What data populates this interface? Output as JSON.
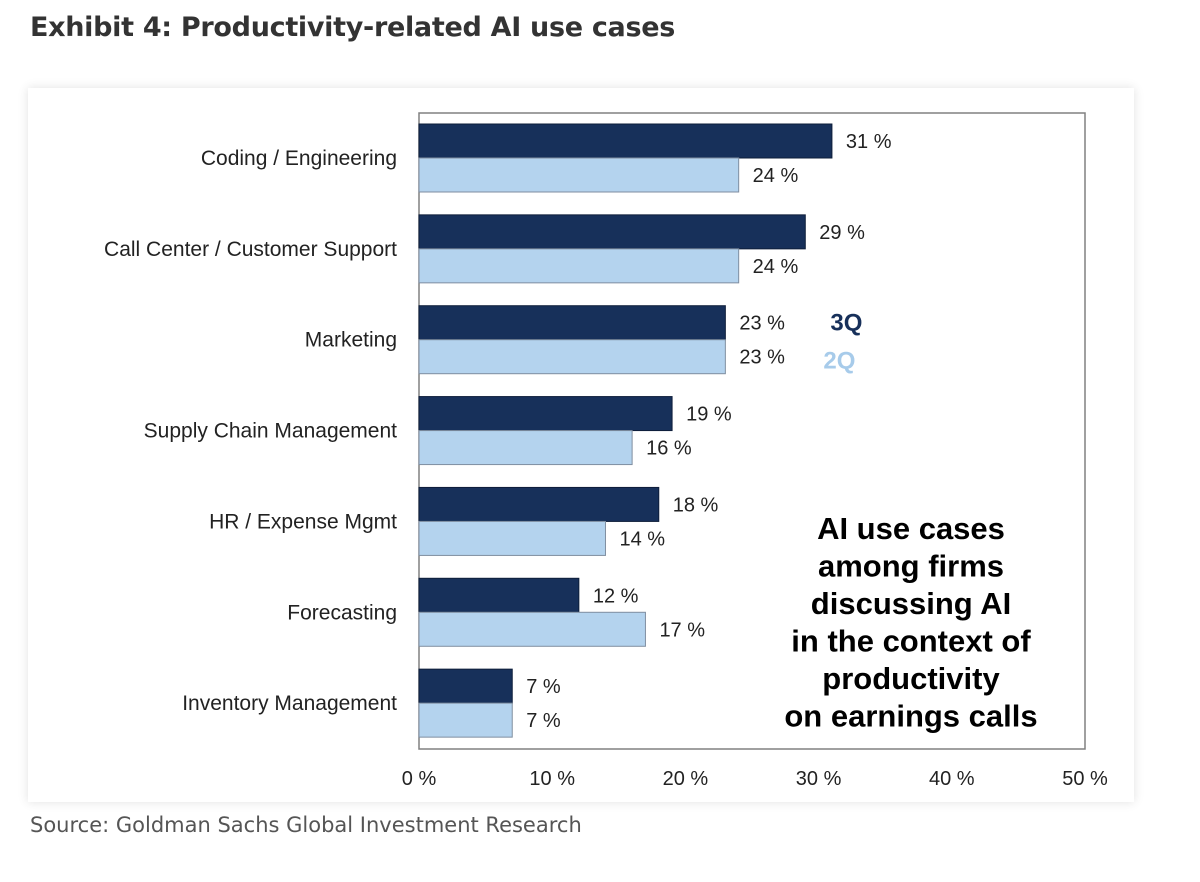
{
  "title": "Exhibit 4: Productivity-related AI use cases",
  "source": "Source: Goldman Sachs Global Investment Research",
  "colors": {
    "series_3q": "#17305a",
    "series_2q": "#b4d3ee",
    "legend_3q": "#17305a",
    "legend_2q": "#a7cbea"
  },
  "chart_data": {
    "type": "bar",
    "orientation": "horizontal",
    "categories": [
      "Coding / Engineering",
      "Call Center / Customer Support",
      "Marketing",
      "Supply Chain Management",
      "HR / Expense Mgmt",
      "Forecasting",
      "Inventory Management"
    ],
    "series": [
      {
        "name": "3Q",
        "values": [
          31,
          29,
          23,
          19,
          18,
          12,
          7
        ]
      },
      {
        "name": "2Q",
        "values": [
          24,
          24,
          23,
          16,
          14,
          17,
          7
        ]
      }
    ],
    "value_labels": {
      "3Q": [
        "31 %",
        "29 %",
        "23 %",
        "19 %",
        "18 %",
        "12 %",
        "7 %"
      ],
      "2Q": [
        "24 %",
        "24 %",
        "23 %",
        "16 %",
        "14 %",
        "17 %",
        "7 %"
      ]
    },
    "xlim": [
      0,
      50
    ],
    "xticks": [
      0,
      10,
      20,
      30,
      40,
      50
    ],
    "xtick_labels": [
      "0 %",
      "10 %",
      "20 %",
      "30 %",
      "40 %",
      "50 %"
    ],
    "legend": {
      "placement": "inline next to Marketing bars",
      "entries": [
        "3Q",
        "2Q"
      ]
    },
    "annotation": [
      "AI use cases",
      "among firms",
      "discussing AI",
      "in the context of",
      "productivity",
      "on earnings calls"
    ],
    "grid": false
  }
}
